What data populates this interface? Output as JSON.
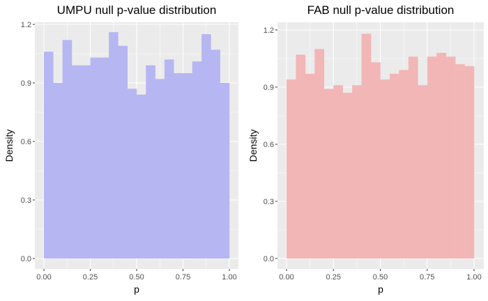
{
  "chart_data": [
    {
      "type": "bar",
      "subtype": "histogram",
      "title": "UMPU null p-value distribution",
      "xlabel": "p",
      "ylabel": "Density",
      "xlim": [
        0,
        1
      ],
      "ylim": [
        0,
        1.2
      ],
      "xticks": [
        "0.00",
        "0.25",
        "0.50",
        "0.75",
        "1.00"
      ],
      "yticks": [
        "0.0",
        "0.3",
        "0.6",
        "0.9",
        "1.2"
      ],
      "bin_width": 0.05,
      "bin_starts": [
        0,
        0.05,
        0.1,
        0.15,
        0.2,
        0.25,
        0.3,
        0.35,
        0.4,
        0.45,
        0.5,
        0.55,
        0.6,
        0.65,
        0.7,
        0.75,
        0.8,
        0.85,
        0.9,
        0.95
      ],
      "values": [
        1.06,
        0.9,
        1.12,
        0.99,
        0.99,
        1.03,
        1.03,
        1.16,
        1.09,
        0.87,
        0.84,
        0.99,
        0.92,
        1.02,
        0.95,
        0.95,
        1.01,
        1.15,
        1.07,
        0.9
      ],
      "fill_color": "#b6b6f2",
      "panel_color": "#ebebeb",
      "grid": true
    },
    {
      "type": "bar",
      "subtype": "histogram",
      "title": "FAB null p-value distribution",
      "xlabel": "p",
      "ylabel": "Density",
      "xlim": [
        0,
        1
      ],
      "ylim": [
        0,
        1.2
      ],
      "xticks": [
        "0.00",
        "0.25",
        "0.50",
        "0.75",
        "1.00"
      ],
      "yticks": [
        "0.0",
        "0.3",
        "0.6",
        "0.9",
        "1.2"
      ],
      "bin_width": 0.05,
      "bin_starts": [
        0,
        0.05,
        0.1,
        0.15,
        0.2,
        0.25,
        0.3,
        0.35,
        0.4,
        0.45,
        0.5,
        0.55,
        0.6,
        0.65,
        0.7,
        0.75,
        0.8,
        0.85,
        0.9,
        0.95
      ],
      "values": [
        0.94,
        1.07,
        0.97,
        1.1,
        0.89,
        0.91,
        0.87,
        0.91,
        1.18,
        1.03,
        0.94,
        0.97,
        0.99,
        1.06,
        0.91,
        1.06,
        1.08,
        1.06,
        1.02,
        1.01
      ],
      "fill_color": "#f2b6b6",
      "panel_color": "#ebebeb",
      "grid": true
    }
  ]
}
